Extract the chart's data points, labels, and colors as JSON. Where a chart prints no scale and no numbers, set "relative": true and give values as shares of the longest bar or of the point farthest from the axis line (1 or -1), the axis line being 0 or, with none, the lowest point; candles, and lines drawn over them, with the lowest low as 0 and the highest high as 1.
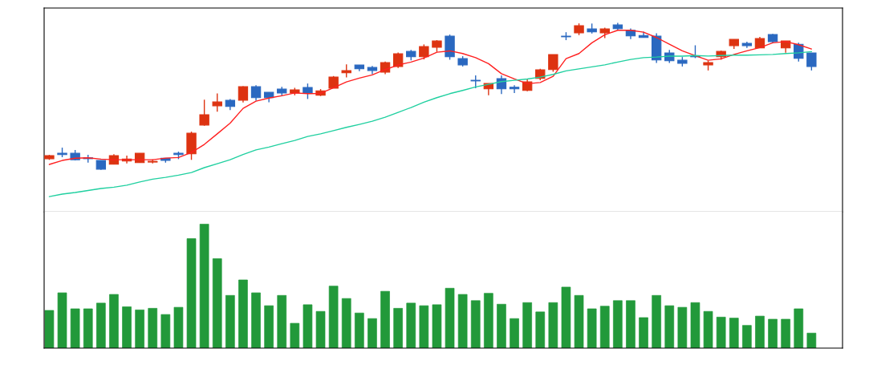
{
  "chart_data": [
    {
      "type": "candlestick",
      "relative": true,
      "categories": [
        null,
        null,
        null,
        null,
        null,
        null,
        null,
        null,
        null,
        null,
        null,
        null,
        null,
        null,
        null,
        null,
        null,
        null,
        null,
        null,
        null,
        null,
        null,
        null,
        null,
        null,
        null,
        null,
        null,
        null,
        null,
        null,
        null,
        null,
        null,
        null,
        null,
        null,
        null,
        null,
        null,
        null,
        null,
        null,
        null,
        null,
        null,
        null,
        null,
        null,
        null,
        null,
        null,
        null,
        null,
        null,
        null,
        null,
        null,
        null,
        null,
        null
      ],
      "ohlc": [
        [
          0.076,
          0.102,
          0.068,
          0.097
        ],
        [
          0.113,
          0.151,
          0.086,
          0.104
        ],
        [
          0.113,
          0.135,
          0.064,
          0.069
        ],
        [
          0.082,
          0.102,
          0.049,
          0.076
        ],
        [
          0.064,
          0.064,
          0,
          0.005
        ],
        [
          0.038,
          0.106,
          0.038,
          0.097
        ],
        [
          0.06,
          0.097,
          0.044,
          0.073
        ],
        [
          0.049,
          0.113,
          0.049,
          0.113
        ],
        [
          0.053,
          0.071,
          0.044,
          0.058
        ],
        [
          0.079,
          0.079,
          0.049,
          0.065
        ],
        [
          0.113,
          0.124,
          0.073,
          0.104
        ],
        [
          0.109,
          0.26,
          0.068,
          0.249
        ],
        [
          0.305,
          0.477,
          0.3,
          0.375
        ],
        [
          0.436,
          0.52,
          0.396,
          0.462
        ],
        [
          0.473,
          0.482,
          0.406,
          0.431
        ],
        [
          0.474,
          0.569,
          0.458,
          0.565
        ],
        [
          0.565,
          0.575,
          0.471,
          0.491
        ],
        [
          0.527,
          0.527,
          0.46,
          0.491
        ],
        [
          0.549,
          0.565,
          0.505,
          0.523
        ],
        [
          0.522,
          0.558,
          0.507,
          0.544
        ],
        [
          0.56,
          0.587,
          0.482,
          0.523
        ],
        [
          0.507,
          0.549,
          0.502,
          0.537
        ],
        [
          0.556,
          0.638,
          0.556,
          0.631
        ],
        [
          0.66,
          0.718,
          0.629,
          0.675
        ],
        [
          0.713,
          0.713,
          0.671,
          0.687
        ],
        [
          0.696,
          0.707,
          0.651,
          0.676
        ],
        [
          0.665,
          0.736,
          0.651,
          0.729
        ],
        [
          0.703,
          0.798,
          0.693,
          0.789
        ],
        [
          0.805,
          0.816,
          0.745,
          0.769
        ],
        [
          0.769,
          0.853,
          0.751,
          0.838
        ],
        [
          0.834,
          0.882,
          0.802,
          0.876
        ],
        [
          0.909,
          0.92,
          0.749,
          0.769
        ],
        [
          0.756,
          0.773,
          0.703,
          0.714
        ],
        [
          0.609,
          0.642,
          0.555,
          0.605
        ],
        [
          0.551,
          0.587,
          0.507,
          0.587
        ],
        [
          0.62,
          0.642,
          0.515,
          0.551
        ],
        [
          0.562,
          0.576,
          0.523,
          0.551
        ],
        [
          0.54,
          0.62,
          0.534,
          0.598
        ],
        [
          0.622,
          0.687,
          0.609,
          0.68
        ],
        [
          0.682,
          0.784,
          0.667,
          0.784
        ],
        [
          0.909,
          0.936,
          0.882,
          0.905
        ],
        [
          0.932,
          0.996,
          0.916,
          0.98
        ],
        [
          0.958,
          0.995,
          0.927,
          0.938
        ],
        [
          0.932,
          0.967,
          0.896,
          0.958
        ],
        [
          0.985,
          1,
          0.953,
          0.96
        ],
        [
          0.949,
          0.962,
          0.889,
          0.911
        ],
        [
          0.914,
          0.94,
          0.9,
          0.9
        ],
        [
          0.909,
          0.929,
          0.727,
          0.747
        ],
        [
          0.795,
          0.815,
          0.727,
          0.742
        ],
        [
          0.745,
          0.767,
          0.703,
          0.725
        ],
        [
          0.773,
          0.847,
          0.76,
          0.769
        ],
        [
          0.714,
          0.742,
          0.676,
          0.729
        ],
        [
          0.769,
          0.811,
          0.749,
          0.805
        ],
        [
          0.845,
          0.887,
          0.823,
          0.887
        ],
        [
          0.86,
          0.871,
          0.829,
          0.845
        ],
        [
          0.829,
          0.904,
          0.829,
          0.893
        ],
        [
          0.92,
          0.925,
          0.862,
          0.872
        ],
        [
          0.829,
          0.876,
          0.796,
          0.876
        ],
        [
          0.854,
          0.865,
          0.736,
          0.758
        ],
        [
          0.795,
          0.795,
          0.676,
          0.703
        ],
        null,
        null
      ],
      "colors": [
        "#dd3311",
        "#2a68c0",
        "#2a68c0",
        "#2a68c0",
        "#2a68c0",
        "#dd3311",
        "#dd3311",
        "#dd3311",
        "#dd3311",
        "#2a68c0",
        "#2a68c0",
        "#dd3311",
        "#dd3311",
        "#dd3311",
        "#2a68c0",
        "#dd3311",
        "#2a68c0",
        "#2a68c0",
        "#2a68c0",
        "#dd3311",
        "#2a68c0",
        "#dd3311",
        "#dd3311",
        "#dd3311",
        "#2a68c0",
        "#2a68c0",
        "#dd3311",
        "#dd3311",
        "#2a68c0",
        "#dd3311",
        "#dd3311",
        "#2a68c0",
        "#2a68c0",
        "#2a68c0",
        "#dd3311",
        "#2a68c0",
        "#2a68c0",
        "#dd3311",
        "#dd3311",
        "#dd3311",
        "#2a68c0",
        "#dd3311",
        "#2a68c0",
        "#dd3311",
        "#2a68c0",
        "#2a68c0",
        "#2a68c0",
        "#2a68c0",
        "#2a68c0",
        "#2a68c0",
        "#2a68c0",
        "#dd3311",
        "#dd3311",
        "#dd3311",
        "#2a68c0",
        "#dd3311",
        "#2a68c0",
        "#dd3311",
        "#2a68c0",
        "#2a68c0",
        null,
        null
      ],
      "series": [
        {
          "type": "line",
          "color": "#ff2020",
          "values": [
            0.037,
            0.064,
            0.079,
            0.082,
            0.073,
            0.069,
            0.069,
            0.069,
            0.069,
            0.08,
            0.084,
            0.118,
            0.173,
            0.245,
            0.318,
            0.418,
            0.467,
            0.488,
            0.504,
            0.523,
            0.518,
            0.52,
            0.558,
            0.598,
            0.624,
            0.646,
            0.682,
            0.713,
            0.733,
            0.76,
            0.8,
            0.809,
            0.791,
            0.763,
            0.722,
            0.654,
            0.618,
            0.586,
            0.594,
            0.636,
            0.756,
            0.791,
            0.864,
            0.918,
            0.949,
            0.949,
            0.936,
            0.9,
            0.854,
            0.809,
            0.777,
            0.745,
            0.755,
            0.785,
            0.809,
            0.831,
            0.864,
            0.872,
            0.851,
            0.822,
            null,
            null
          ]
        },
        {
          "type": "line",
          "color": "#20d0a0",
          "values": [
            -0.182,
            -0.165,
            -0.154,
            -0.14,
            -0.127,
            -0.118,
            -0.104,
            -0.082,
            -0.063,
            -0.051,
            -0.036,
            -0.018,
            0.015,
            0.042,
            0.069,
            0.104,
            0.136,
            0.155,
            0.178,
            0.2,
            0.227,
            0.245,
            0.267,
            0.289,
            0.309,
            0.331,
            0.358,
            0.391,
            0.424,
            0.46,
            0.491,
            0.518,
            0.54,
            0.564,
            0.582,
            0.6,
            0.609,
            0.618,
            0.631,
            0.649,
            0.673,
            0.687,
            0.7,
            0.714,
            0.733,
            0.751,
            0.763,
            0.767,
            0.773,
            0.773,
            0.777,
            0.774,
            0.777,
            0.78,
            0.78,
            0.782,
            0.785,
            0.791,
            0.796,
            0.804,
            null,
            null
          ]
        }
      ]
    },
    {
      "type": "bar",
      "relative": true,
      "color": "#22993a",
      "categories": [
        null,
        null,
        null,
        null,
        null,
        null,
        null,
        null,
        null,
        null,
        null,
        null,
        null,
        null,
        null,
        null,
        null,
        null,
        null,
        null,
        null,
        null,
        null,
        null,
        null,
        null,
        null,
        null,
        null,
        null,
        null,
        null,
        null,
        null,
        null,
        null,
        null,
        null,
        null,
        null,
        null,
        null,
        null,
        null,
        null,
        null,
        null,
        null,
        null,
        null,
        null,
        null,
        null,
        null,
        null,
        null,
        null,
        null,
        null,
        null,
        null,
        null
      ],
      "values": [
        0.304,
        0.446,
        0.317,
        0.317,
        0.363,
        0.433,
        0.333,
        0.308,
        0.321,
        0.271,
        0.329,
        0.883,
        1,
        0.721,
        0.425,
        0.55,
        0.446,
        0.342,
        0.425,
        0.2,
        0.35,
        0.296,
        0.5,
        0.4,
        0.283,
        0.238,
        0.458,
        0.321,
        0.363,
        0.342,
        0.35,
        0.483,
        0.433,
        0.383,
        0.442,
        0.354,
        0.238,
        0.367,
        0.292,
        0.367,
        0.492,
        0.425,
        0.317,
        0.338,
        0.383,
        0.383,
        0.246,
        0.425,
        0.342,
        0.329,
        0.367,
        0.296,
        0.25,
        0.242,
        0.183,
        0.258,
        0.233,
        0.233,
        0.317,
        0.121,
        null,
        null
      ]
    }
  ]
}
